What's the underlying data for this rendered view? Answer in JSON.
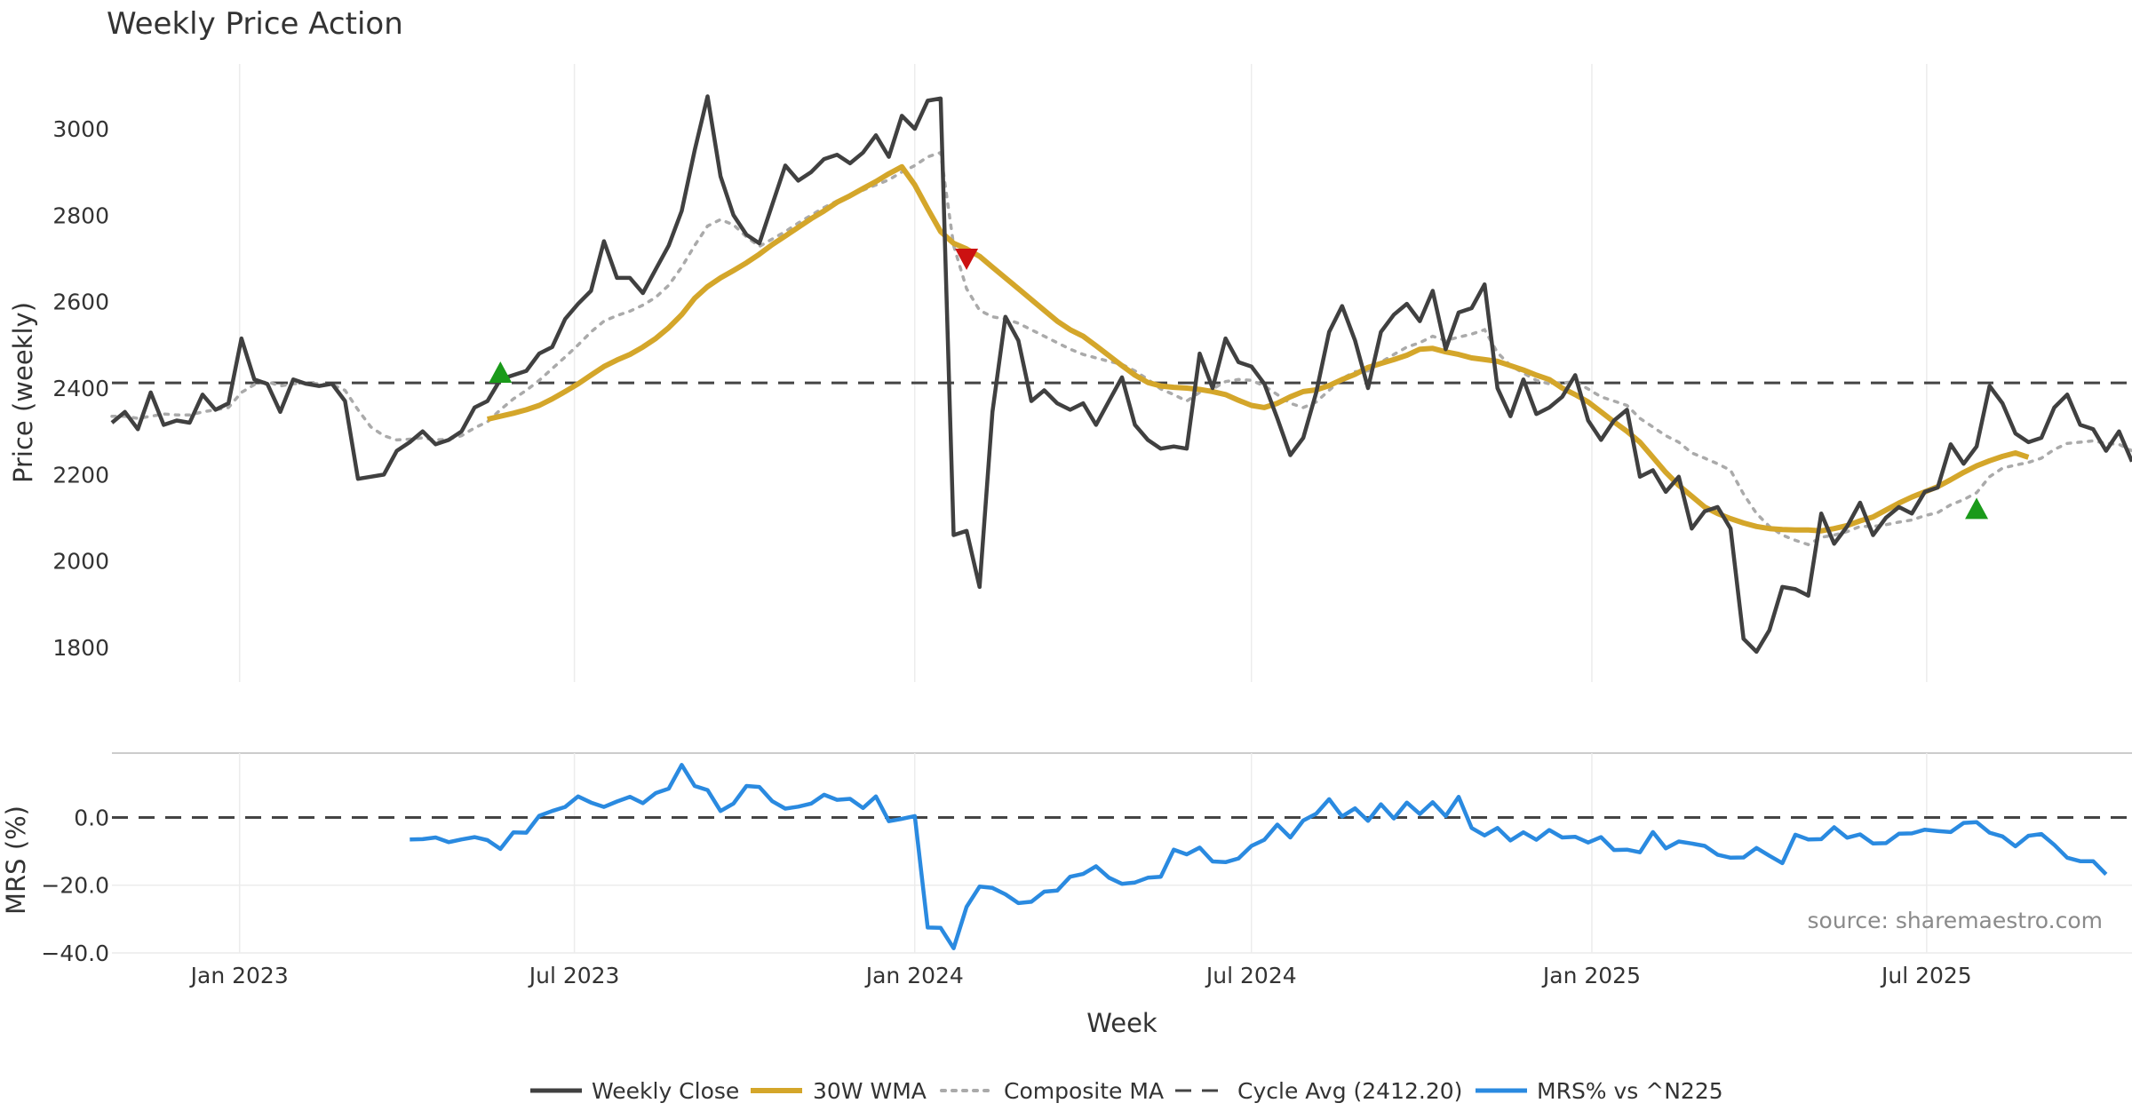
{
  "chart_data": {
    "type": "line",
    "title": "Weekly Price Action",
    "xlabel": "Week",
    "source": "source: sharemaestro.com",
    "x_ticks": [
      "Jan 2023",
      "Jul 2023",
      "Jan 2024",
      "Jul 2024",
      "Jan 2025",
      "Jul 2025"
    ],
    "x_range": [
      "2022-10-24",
      "2025-10-20"
    ],
    "weeks_to_jan2023": 10,
    "colors": {
      "close": "#404040",
      "wma": "#d4a62a",
      "composite": "#aaaaaa",
      "cycle": "#444444",
      "mrs": "#2a8ae0",
      "up_marker": "#1a9a1a",
      "down_marker": "#cc1111"
    },
    "price_panel": {
      "ylabel": "Price (weekly)",
      "ylim": [
        1720,
        3150
      ],
      "yticks": [
        "1800",
        "2000",
        "2200",
        "2400",
        "2600",
        "2800",
        "3000"
      ],
      "cycle_avg": 2412.2,
      "series": [
        {
          "name": "Weekly Close",
          "start_index": 0,
          "values": [
            2320,
            2345,
            2305,
            2390,
            2315,
            2325,
            2320,
            2385,
            2350,
            2365,
            2515,
            2420,
            2410,
            2345,
            2420,
            2410,
            2405,
            2410,
            2370,
            2190,
            2195,
            2200,
            2255,
            2275,
            2300,
            2270,
            2280,
            2300,
            2355,
            2370,
            2420,
            2430,
            2440,
            2480,
            2495,
            2560,
            2595,
            2625,
            2740,
            2655,
            2655,
            2620,
            2675,
            2730,
            2810,
            2950,
            3075,
            2890,
            2800,
            2755,
            2735,
            2825,
            2915,
            2880,
            2900,
            2930,
            2940,
            2920,
            2945,
            2985,
            2935,
            3030,
            3000,
            3065,
            3070,
            2060,
            2070,
            1940,
            2345,
            2565,
            2510,
            2370,
            2395,
            2365,
            2350,
            2365,
            2315,
            2370,
            2425,
            2315,
            2280,
            2260,
            2265,
            2260,
            2480,
            2400,
            2515,
            2460,
            2450,
            2410,
            2330,
            2245,
            2285,
            2390,
            2530,
            2590,
            2510,
            2400,
            2530,
            2570,
            2595,
            2555,
            2625,
            2490,
            2575,
            2585,
            2640,
            2400,
            2335,
            2420,
            2340,
            2355,
            2380,
            2430,
            2325,
            2280,
            2325,
            2350,
            2195,
            2210,
            2160,
            2195,
            2075,
            2115,
            2125,
            2075,
            1820,
            1790,
            1840,
            1940,
            1935,
            1920,
            2110,
            2040,
            2080,
            2135,
            2060,
            2100,
            2125,
            2110,
            2160,
            2170,
            2270,
            2225,
            2265,
            2405,
            2365,
            2295,
            2275,
            2285,
            2355,
            2385,
            2315,
            2305,
            2255,
            2300,
            2230
          ]
        },
        {
          "name": "30W WMA",
          "start_index": 29,
          "values": [
            2328,
            2335,
            2342,
            2350,
            2360,
            2375,
            2392,
            2410,
            2430,
            2450,
            2465,
            2478,
            2495,
            2515,
            2540,
            2570,
            2608,
            2635,
            2655,
            2672,
            2690,
            2710,
            2732,
            2752,
            2772,
            2792,
            2810,
            2830,
            2845,
            2862,
            2878,
            2896,
            2912,
            2870,
            2815,
            2762,
            2735,
            2722,
            2705,
            2680,
            2655,
            2630,
            2605,
            2580,
            2555,
            2535,
            2520,
            2498,
            2475,
            2452,
            2430,
            2413,
            2405,
            2402,
            2400,
            2397,
            2392,
            2385,
            2372,
            2360,
            2355,
            2365,
            2380,
            2392,
            2396,
            2406,
            2420,
            2432,
            2448,
            2457,
            2466,
            2476,
            2490,
            2492,
            2484,
            2478,
            2470,
            2466,
            2462,
            2452,
            2442,
            2430,
            2420,
            2400,
            2385,
            2368,
            2345,
            2322,
            2300,
            2275,
            2240,
            2205,
            2175,
            2150,
            2125,
            2110,
            2098,
            2088,
            2080,
            2075,
            2073,
            2072,
            2072,
            2070,
            2075,
            2082,
            2093,
            2102,
            2118,
            2134,
            2148,
            2160,
            2172,
            2188,
            2205,
            2220,
            2232,
            2242,
            2250,
            2240
          ]
        },
        {
          "name": "Composite MA",
          "start_index": 0,
          "values": [
            2335,
            2335,
            2330,
            2335,
            2340,
            2338,
            2338,
            2345,
            2350,
            2355,
            2390,
            2408,
            2415,
            2405,
            2410,
            2412,
            2410,
            2408,
            2395,
            2350,
            2310,
            2290,
            2280,
            2282,
            2285,
            2280,
            2282,
            2290,
            2308,
            2322,
            2350,
            2375,
            2395,
            2418,
            2445,
            2472,
            2500,
            2530,
            2555,
            2568,
            2578,
            2592,
            2610,
            2638,
            2680,
            2730,
            2775,
            2790,
            2778,
            2750,
            2728,
            2745,
            2762,
            2782,
            2800,
            2818,
            2833,
            2845,
            2858,
            2870,
            2882,
            2900,
            2915,
            2935,
            2945,
            2730,
            2630,
            2580,
            2565,
            2560,
            2550,
            2535,
            2520,
            2505,
            2490,
            2478,
            2470,
            2462,
            2455,
            2440,
            2420,
            2398,
            2385,
            2370,
            2390,
            2398,
            2415,
            2420,
            2418,
            2405,
            2385,
            2365,
            2355,
            2368,
            2395,
            2422,
            2438,
            2440,
            2460,
            2478,
            2495,
            2505,
            2520,
            2510,
            2518,
            2525,
            2535,
            2482,
            2452,
            2435,
            2418,
            2410,
            2412,
            2415,
            2398,
            2380,
            2370,
            2360,
            2330,
            2310,
            2290,
            2275,
            2250,
            2238,
            2225,
            2210,
            2155,
            2110,
            2080,
            2060,
            2048,
            2038,
            2055,
            2060,
            2068,
            2080,
            2080,
            2084,
            2090,
            2095,
            2105,
            2112,
            2130,
            2142,
            2158,
            2195,
            2215,
            2222,
            2228,
            2238,
            2258,
            2272,
            2275,
            2278,
            2272,
            2270,
            2255
          ]
        },
        {
          "name": "Cycle Avg (2412.20)"
        }
      ],
      "markers": [
        {
          "type": "up",
          "index": 30,
          "value": 2435
        },
        {
          "type": "down",
          "index": 66,
          "value": 2700
        },
        {
          "type": "up",
          "index": 144,
          "value": 2120
        }
      ]
    },
    "mrs_panel": {
      "ylabel": "MRS (%)",
      "ylim": [
        -40,
        19
      ],
      "yticks": [
        "0.0",
        "−20.0",
        "−40.0"
      ],
      "zero_line": 0,
      "series": [
        {
          "name": "MRS% vs ^N225",
          "start_index": 23,
          "values": [
            -6.5,
            -6.4,
            -5.9,
            -7.3,
            -6.5,
            -5.8,
            -6.7,
            -9.3,
            -4.4,
            -4.5,
            0.5,
            1.9,
            3.1,
            6.2,
            4.4,
            3.1,
            4.7,
            6.1,
            4.2,
            7.2,
            8.5,
            15.5,
            9.3,
            8.1,
            1.9,
            4.1,
            9.3,
            9.0,
            4.8,
            2.6,
            3.2,
            4.1,
            6.7,
            5.2,
            5.5,
            2.8,
            6.2,
            -1.1,
            -0.4,
            0.4,
            -32.5,
            -32.6,
            -38.6,
            -26.4,
            -20.4,
            -20.8,
            -22.7,
            -25.3,
            -24.9,
            -21.9,
            -21.6,
            -17.5,
            -16.7,
            -14.4,
            -17.8,
            -19.6,
            -19.2,
            -17.8,
            -17.5,
            -9.5,
            -10.9,
            -8.9,
            -13.0,
            -13.2,
            -12.1,
            -8.4,
            -6.6,
            -2.1,
            -5.9,
            -0.9,
            1.1,
            5.4,
            0.3,
            2.7,
            -1.0,
            3.9,
            -0.3,
            4.4,
            1.0,
            4.5,
            0.4,
            6.1,
            -3.1,
            -5.3,
            -3.1,
            -6.8,
            -4.4,
            -6.6,
            -3.7,
            -5.9,
            -5.7,
            -7.4,
            -5.8,
            -9.6,
            -9.5,
            -10.3,
            -4.3,
            -9.1,
            -7.1,
            -7.7,
            -8.4,
            -11.0,
            -11.9,
            -11.8,
            -9.0,
            -11.3,
            -13.5,
            -5.1,
            -6.5,
            -6.4,
            -2.9,
            -6.0,
            -5.0,
            -7.7,
            -7.6,
            -4.8,
            -4.7,
            -3.6,
            -4.0,
            -4.3,
            -1.6,
            -1.4,
            -4.5,
            -5.6,
            -8.5,
            -5.4,
            -4.9,
            -8.1,
            -11.9,
            -12.9,
            -12.9,
            -16.8
          ]
        }
      ]
    }
  }
}
